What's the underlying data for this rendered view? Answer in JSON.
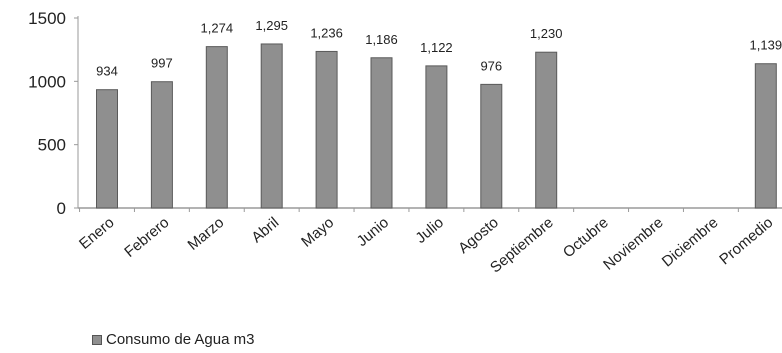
{
  "chart_data": {
    "type": "bar",
    "categories": [
      "Enero",
      "Febrero",
      "Marzo",
      "Abril",
      "Mayo",
      "Junio",
      "Julio",
      "Agosto",
      "Septiembre",
      "Octubre",
      "Noviembre",
      "Diciembre",
      "Promedio"
    ],
    "series": [
      {
        "name": "Consumo de Agua m3",
        "values": [
          934,
          997,
          1274,
          1295,
          1236,
          1186,
          1122,
          976,
          1230,
          null,
          null,
          null,
          1139
        ],
        "labels": [
          "934",
          "997",
          "1,274",
          "1,295",
          "1,236",
          "1,186",
          "1,122",
          "976",
          "1,230",
          "",
          "",
          "",
          "1,139"
        ]
      }
    ],
    "ylim": [
      0,
      1500
    ],
    "yticks": [
      0,
      500,
      1000,
      1500
    ],
    "ytick_labels": [
      "0",
      "500",
      "1000",
      "1500"
    ],
    "grid": false,
    "legend": "bottom-left",
    "bar_color": "#8f8f8f",
    "bar_edge_color": "#5a5a5a"
  }
}
